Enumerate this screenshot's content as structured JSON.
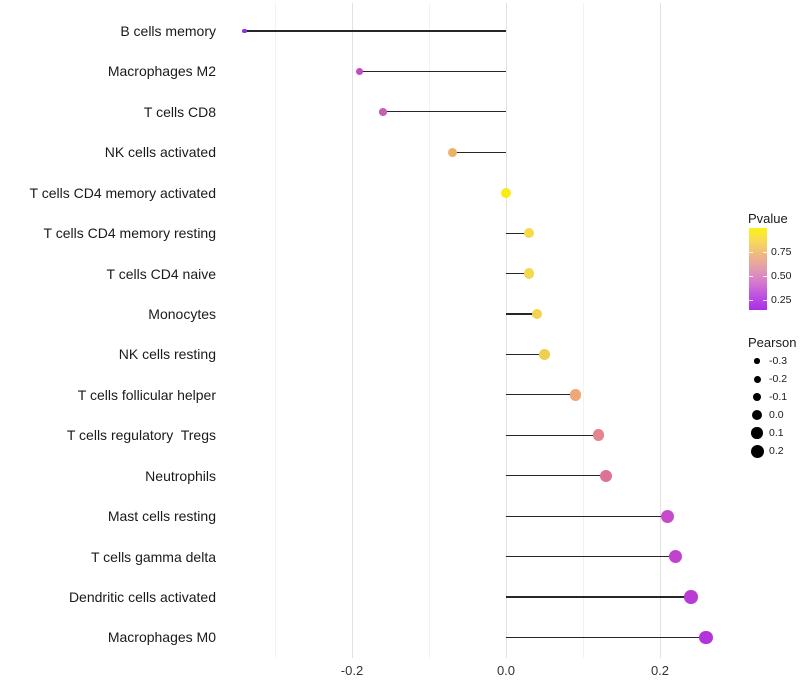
{
  "chart_data": {
    "type": "lollipop",
    "orientation": "horizontal",
    "title": "",
    "xlabel": "",
    "ylabel": "",
    "xlim": [
      -0.37,
      0.29
    ],
    "x_ticks": [
      {
        "label": "-0.2",
        "value": -0.2
      },
      {
        "label": "0.0",
        "value": 0.0
      },
      {
        "label": "0.2",
        "value": 0.2
      }
    ],
    "gridlines": {
      "major": [
        -0.2,
        0.0,
        0.2
      ],
      "minor": [
        -0.3,
        -0.1,
        0.1
      ]
    },
    "stem_color": "#262626",
    "rows": [
      {
        "category": "B cells memory",
        "pearson": -0.34,
        "color": "#9232DD"
      },
      {
        "category": "Macrophages M2",
        "pearson": -0.19,
        "color": "#C44BBF"
      },
      {
        "category": "T cells CD8",
        "pearson": -0.16,
        "color": "#C75FB3"
      },
      {
        "category": "NK cells activated",
        "pearson": -0.07,
        "color": "#EEB167"
      },
      {
        "category": "T cells CD4 memory activated",
        "pearson": 0.0,
        "color": "#F9EC15"
      },
      {
        "category": "T cells CD4 memory resting",
        "pearson": 0.03,
        "color": "#F5DB4C"
      },
      {
        "category": "T cells CD4 naive",
        "pearson": 0.03,
        "color": "#F4D84E"
      },
      {
        "category": "Monocytes",
        "pearson": 0.04,
        "color": "#F2D44E"
      },
      {
        "category": "NK cells resting",
        "pearson": 0.05,
        "color": "#F0CE50"
      },
      {
        "category": "T cells follicular helper",
        "pearson": 0.09,
        "color": "#EDA876"
      },
      {
        "category": "T cells regulatory  Tregs",
        "pearson": 0.12,
        "color": "#E5838E"
      },
      {
        "category": "Neutrophils",
        "pearson": 0.13,
        "color": "#DD7394"
      },
      {
        "category": "Mast cells resting",
        "pearson": 0.21,
        "color": "#C94AC9"
      },
      {
        "category": "T cells gamma delta",
        "pearson": 0.22,
        "color": "#C242CE"
      },
      {
        "category": "Dendritic cells activated",
        "pearson": 0.24,
        "color": "#B93AD4"
      },
      {
        "category": "Macrophages M0",
        "pearson": 0.26,
        "color": "#B135DA"
      }
    ],
    "legend_pvalue": {
      "title": "Pvalue",
      "tick_labels": [
        "0.75",
        "0.50",
        "0.25"
      ],
      "gradient_top_to_bottom": [
        "#FCF115",
        "#F7D95B",
        "#EFB685",
        "#E29BB0",
        "#D478CF",
        "#BE50E2",
        "#A92FE6"
      ]
    },
    "legend_pearson": {
      "title": "Pearson",
      "dot_color": "#000000",
      "items": [
        {
          "label": "-0.3",
          "value": -0.3
        },
        {
          "label": "-0.2",
          "value": -0.2
        },
        {
          "label": "-0.1",
          "value": -0.1
        },
        {
          "label": "0.0",
          "value": 0.0
        },
        {
          "label": "0.1",
          "value": 0.1
        },
        {
          "label": "0.2",
          "value": 0.2
        }
      ]
    }
  }
}
